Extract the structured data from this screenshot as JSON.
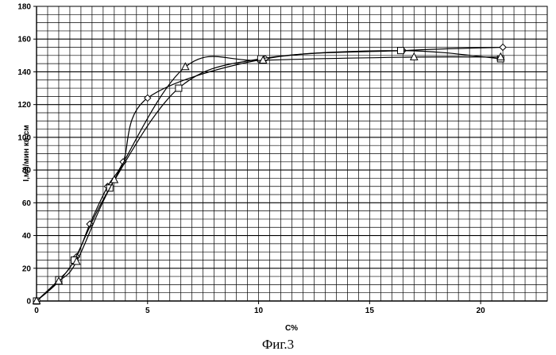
{
  "figure": {
    "caption": "Фиг.3"
  },
  "chart_data": {
    "type": "line",
    "title": "",
    "xlabel": "C%",
    "ylabel": "I,мл/мин кв.см",
    "xlim": [
      0,
      23
    ],
    "ylim": [
      0,
      180
    ],
    "x_ticks": [
      0,
      5,
      10,
      15,
      20
    ],
    "y_ticks": [
      0,
      20,
      40,
      60,
      80,
      100,
      120,
      140,
      160,
      180
    ],
    "grid": true,
    "legend": "none",
    "series": [
      {
        "marker": "diamond",
        "color": "#000000",
        "points": [
          [
            0,
            0
          ],
          [
            1,
            12
          ],
          [
            1.8,
            27
          ],
          [
            2.4,
            47
          ],
          [
            3.2,
            70
          ],
          [
            3.9,
            85
          ],
          [
            5,
            124
          ],
          [
            10.3,
            148
          ],
          [
            16.5,
            153
          ],
          [
            21,
            155
          ]
        ]
      },
      {
        "marker": "square",
        "color": "#000000",
        "points": [
          [
            0,
            0
          ],
          [
            1,
            13
          ],
          [
            1.7,
            25
          ],
          [
            3.3,
            69
          ],
          [
            6.4,
            130
          ],
          [
            10.1,
            148
          ],
          [
            16.4,
            153
          ],
          [
            20.9,
            148
          ]
        ]
      },
      {
        "marker": "triangle",
        "color": "#000000",
        "points": [
          [
            0,
            0
          ],
          [
            1,
            12
          ],
          [
            1.8,
            24
          ],
          [
            3.5,
            74
          ],
          [
            6.7,
            143
          ],
          [
            10.2,
            147
          ],
          [
            17,
            149
          ],
          [
            20.9,
            149
          ]
        ]
      }
    ]
  }
}
